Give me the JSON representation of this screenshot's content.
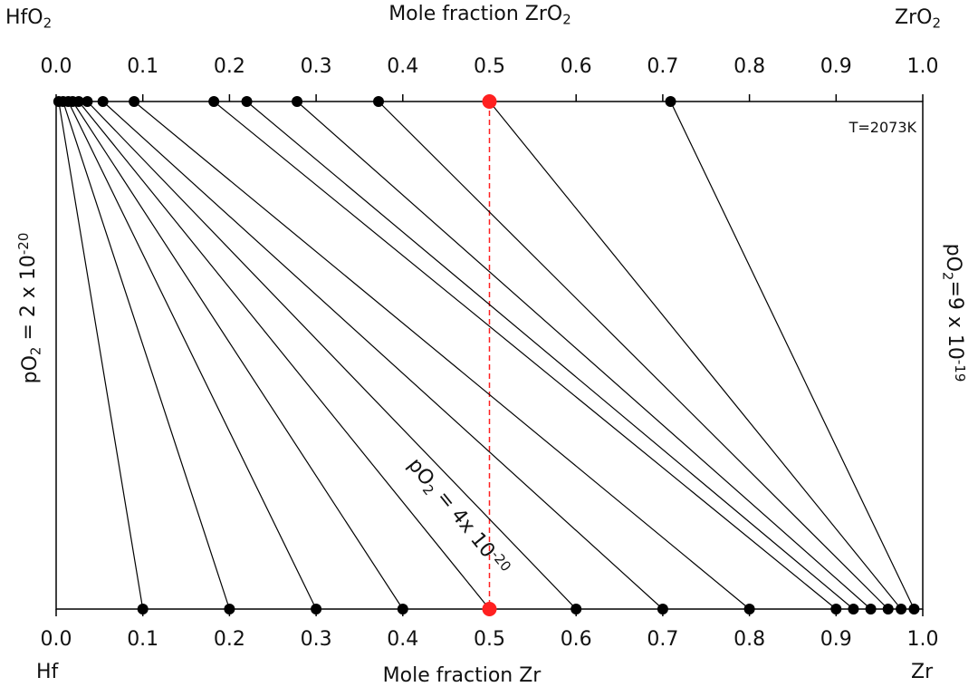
{
  "chart_data": {
    "type": "tie-line",
    "top_axis": {
      "label": [
        "Mole fraction ZrO",
        "2"
      ],
      "left_end": [
        "HfO",
        "2"
      ],
      "right_end": [
        "ZrO",
        "2"
      ],
      "xlim": [
        0,
        1
      ],
      "xticks": [
        {
          "value": 0,
          "label": "0.0"
        },
        0.1,
        0.2,
        0.3,
        0.4,
        0.5,
        0.6,
        0.7,
        0.8,
        0.9,
        {
          "value": 1,
          "label": "1.0"
        }
      ]
    },
    "bottom_axis": {
      "label": "Mole fraction Zr",
      "left_end": "Hf",
      "right_end": "Zr",
      "xlim": [
        0,
        1
      ],
      "xticks": [
        {
          "value": 0,
          "label": "0.0"
        },
        0.1,
        0.2,
        0.3,
        0.4,
        0.5,
        0.6,
        0.7,
        0.8,
        0.9,
        {
          "value": 1,
          "label": "1.0"
        }
      ]
    },
    "series": [
      {
        "color": "#000000",
        "zr": [
          0.1,
          0.2,
          0.3,
          0.4,
          0.5,
          0.6,
          0.7,
          0.8,
          0.9,
          0.92,
          0.94,
          0.96,
          0.975,
          0.99
        ],
        "zro2": [
          0.003,
          0.008,
          0.014,
          0.019,
          0.026,
          0.036,
          0.054,
          0.09,
          0.182,
          0.22,
          0.278,
          0.372,
          0.5,
          0.709
        ]
      }
    ],
    "highlight": {
      "x": 0.5,
      "color": "#ff2020"
    },
    "temperature": "T=2073K",
    "left_label": [
      "pO",
      "2",
      " = 2 x 10",
      "-20"
    ],
    "right_label": [
      "pO",
      "2",
      "=9 x 10",
      "-19"
    ],
    "line_label": [
      "pO",
      "2",
      " = 4x 10",
      "-20"
    ]
  }
}
